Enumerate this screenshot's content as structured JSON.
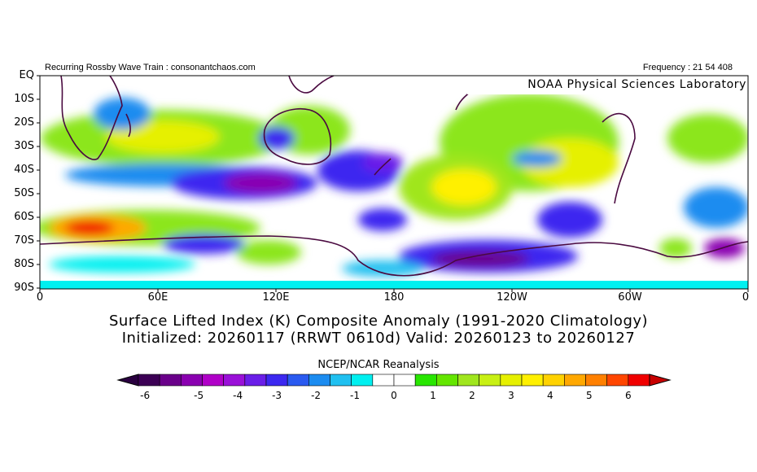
{
  "header": {
    "left_text": "Recurring Rossby Wave Train : consonantchaos.com",
    "right_text": "Frequency : 21 54 408",
    "lab_banner": "NOAA Physical Sciences Laboratory"
  },
  "map": {
    "lat_labels": [
      "EQ",
      "10S",
      "20S",
      "30S",
      "40S",
      "50S",
      "60S",
      "70S",
      "80S",
      "90S"
    ],
    "lon_labels": [
      "0",
      "60E",
      "120E",
      "180",
      "120W",
      "60W",
      "0"
    ],
    "field": "Surface Lifted Index anomaly (K)"
  },
  "title": {
    "line1": "Surface Lifted Index (K) Composite Anomaly (1991-2020 Climatology)",
    "line2": "Initialized: 20260117 (RRWT 0610d) Valid: 20260123 to 20260127"
  },
  "colorbar": {
    "source": "NCEP/NCAR Reanalysis",
    "ticks": [
      "-6",
      "-5",
      "-4",
      "-3",
      "-2",
      "-1",
      "0",
      "1",
      "2",
      "3",
      "4",
      "5",
      "6"
    ],
    "colors": [
      "#3c0055",
      "#6a008a",
      "#8a00b0",
      "#b000c8",
      "#9a10d8",
      "#6a1ee8",
      "#3c28f0",
      "#2a5af0",
      "#1c8cf0",
      "#20c0f0",
      "#00f0f0",
      "#ffffff",
      "#ffffff",
      "#28e600",
      "#64e600",
      "#a0e61e",
      "#c8f014",
      "#e6f000",
      "#fff000",
      "#ffd200",
      "#ffa800",
      "#ff8000",
      "#ff4600",
      "#f00000"
    ]
  }
}
